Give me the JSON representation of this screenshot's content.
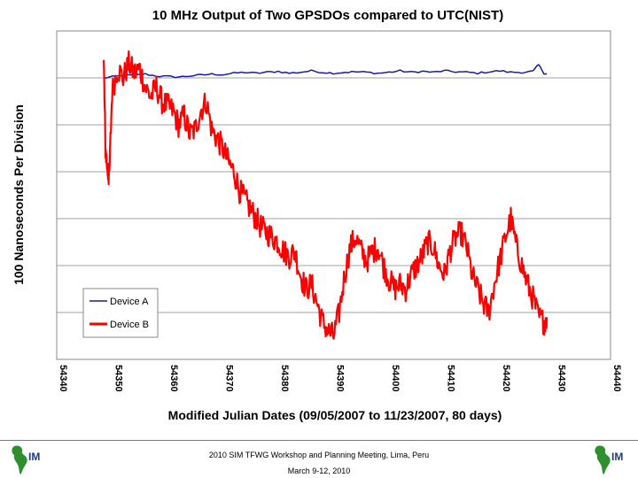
{
  "chart_data": {
    "type": "line",
    "title": "10 MHz Output of Two GPSDOs compared to UTC(NIST)",
    "xlabel": "Modified Julian Dates (09/05/2007 to 11/23/2007, 80 days)",
    "ylabel": "100 Nanoseconds Per Division",
    "xlim": [
      54340,
      54440
    ],
    "ylim": [
      0,
      7
    ],
    "x_ticks": [
      "54340",
      "54350",
      "54360",
      "54370",
      "54380",
      "54390",
      "54400",
      "54410",
      "54420",
      "54430",
      "54440"
    ],
    "grid": true,
    "legend": "lower-left",
    "series": [
      {
        "name": "Device A",
        "color": "#1a1aa8",
        "x": [
          54348.5,
          54350,
          54352,
          54354,
          54356,
          54358,
          54360,
          54362,
          54364,
          54366,
          54368,
          54370,
          54372,
          54374,
          54376,
          54378,
          54380,
          54382,
          54384,
          54386,
          54388,
          54390,
          54392,
          54394,
          54396,
          54398,
          54400,
          54402,
          54404,
          54406,
          54408,
          54410,
          54412,
          54414,
          54416,
          54418,
          54420,
          54422,
          54424,
          54426,
          54427,
          54428,
          54428.5
        ],
        "y": [
          6.0,
          6.02,
          6.05,
          6.06,
          6.08,
          6.04,
          6.03,
          6.02,
          6.04,
          6.06,
          6.08,
          6.07,
          6.1,
          6.12,
          6.1,
          6.12,
          6.14,
          6.1,
          6.12,
          6.15,
          6.12,
          6.1,
          6.12,
          6.13,
          6.12,
          6.1,
          6.12,
          6.15,
          6.12,
          6.14,
          6.12,
          6.15,
          6.13,
          6.12,
          6.1,
          6.13,
          6.15,
          6.12,
          6.12,
          6.14,
          6.28,
          6.1,
          6.08
        ]
      },
      {
        "name": "Device B",
        "color": "#ff0000",
        "x": [
          54348.5,
          54348.8,
          54349.2,
          54349.5,
          54350,
          54351,
          54352,
          54353,
          54354,
          54355,
          54356,
          54357,
          54358,
          54359,
          54360,
          54361,
          54362,
          54363,
          54364,
          54365,
          54366,
          54367,
          54368,
          54369,
          54370,
          54371,
          54372,
          54373,
          54374,
          54375,
          54376,
          54377,
          54378,
          54379,
          54380,
          54381,
          54382,
          54383,
          54384,
          54385,
          54386,
          54387,
          54388,
          54389,
          54390,
          54391,
          54392,
          54393,
          54394,
          54395,
          54396,
          54397,
          54398,
          54399,
          54400,
          54401,
          54402,
          54403,
          54404,
          54405,
          54406,
          54407,
          54408,
          54409,
          54410,
          54411,
          54412,
          54413,
          54414,
          54415,
          54416,
          54417,
          54418,
          54419,
          54420,
          54421,
          54422,
          54423,
          54424,
          54425,
          54426,
          54427,
          54428,
          54428.5
        ],
        "y": [
          6.3,
          4.5,
          4.0,
          3.9,
          5.7,
          6.2,
          6.0,
          6.3,
          6.1,
          6.2,
          5.8,
          5.6,
          5.8,
          5.5,
          5.4,
          5.3,
          5.0,
          5.2,
          4.8,
          4.9,
          5.3,
          5.5,
          4.9,
          4.7,
          4.5,
          4.2,
          4.0,
          3.6,
          3.4,
          3.2,
          3.0,
          2.8,
          2.7,
          2.6,
          2.5,
          2.3,
          2.2,
          2.3,
          1.8,
          1.5,
          1.6,
          1.2,
          0.8,
          0.6,
          0.5,
          1.0,
          1.8,
          2.4,
          2.6,
          2.3,
          2.1,
          2.3,
          2.4,
          2.0,
          1.7,
          1.5,
          1.6,
          1.5,
          1.8,
          2.0,
          2.2,
          2.5,
          2.4,
          2.0,
          1.8,
          2.3,
          2.6,
          2.7,
          2.4,
          1.8,
          1.5,
          1.2,
          1.0,
          1.6,
          2.1,
          2.6,
          3.0,
          2.4,
          2.0,
          1.6,
          1.3,
          0.9,
          0.8,
          0.9
        ]
      }
    ]
  },
  "footer": {
    "line1": "2010 SIM TFWG Workshop and Planning Meeting, Lima, Peru",
    "line2": "March 9-12, 2010",
    "logo_text": "IM"
  }
}
